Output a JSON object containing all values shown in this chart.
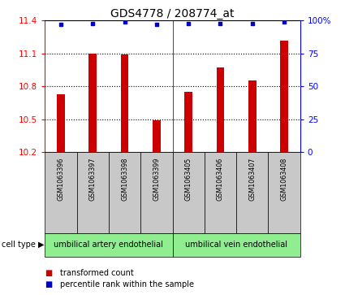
{
  "title": "GDS4778 / 208774_at",
  "samples": [
    "GSM1063396",
    "GSM1063397",
    "GSM1063398",
    "GSM1063399",
    "GSM1063405",
    "GSM1063406",
    "GSM1063407",
    "GSM1063408"
  ],
  "bar_values": [
    10.73,
    11.1,
    11.09,
    10.49,
    10.75,
    10.97,
    10.85,
    11.22
  ],
  "percentile_values": [
    97,
    98,
    99,
    97,
    98,
    98,
    98,
    99
  ],
  "ylim_left": [
    10.2,
    11.4
  ],
  "ylim_right": [
    0,
    100
  ],
  "yticks_left": [
    10.2,
    10.5,
    10.8,
    11.1,
    11.4
  ],
  "yticks_right": [
    0,
    25,
    50,
    75,
    100
  ],
  "bar_color": "#cc0000",
  "percentile_color": "#0000cc",
  "group1_label": "umbilical artery endothelial",
  "group2_label": "umbilical vein endothelial",
  "group1_indices": [
    0,
    1,
    2,
    3
  ],
  "group2_indices": [
    4,
    5,
    6,
    7
  ],
  "cell_type_label": "cell type",
  "legend1": "transformed count",
  "legend2": "percentile rank within the sample",
  "group_color": "#90ee90",
  "label_area_color": "#c8c8c8",
  "title_fontsize": 10,
  "tick_fontsize": 7.5,
  "sample_fontsize": 5.8,
  "group_fontsize": 7,
  "legend_fontsize": 7,
  "bar_width": 0.25
}
